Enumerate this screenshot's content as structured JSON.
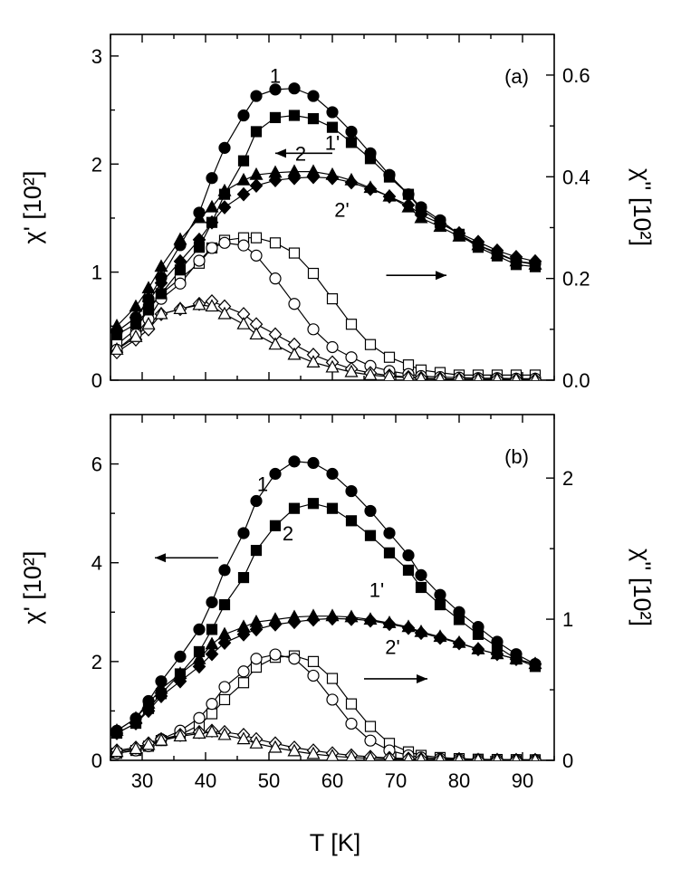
{
  "chart_data": [
    {
      "type": "scatter",
      "panel_label": "(a)",
      "x": [
        26,
        29,
        31,
        33,
        36,
        39,
        41,
        43,
        46,
        48,
        51,
        54,
        57,
        60,
        63,
        66,
        69,
        72,
        74,
        77,
        80,
        83,
        86,
        89,
        92
      ],
      "xlabel": "T [K]",
      "xlim": [
        25,
        95
      ],
      "xticks": [
        "30",
        "40",
        "50",
        "60",
        "70",
        "80",
        "90"
      ],
      "ylabel_left": "χ' [10²]",
      "ylim_left": [
        0,
        3.2
      ],
      "yticks_left": [
        "0",
        "1",
        "2",
        "3"
      ],
      "ylabel_right": "χ'' [10²]",
      "ylim_right": [
        0,
        0.68
      ],
      "yticks_right": [
        "0.0",
        "0.2",
        "0.4",
        "0.6"
      ],
      "series": [
        {
          "name": "1",
          "axis": "left",
          "marker": "circle",
          "filled": true,
          "values": [
            0.45,
            0.58,
            0.75,
            0.95,
            1.25,
            1.55,
            1.87,
            2.15,
            2.45,
            2.63,
            2.69,
            2.7,
            2.63,
            2.48,
            2.3,
            2.1,
            1.9,
            1.72,
            1.6,
            1.48,
            1.35,
            1.25,
            1.18,
            1.1,
            1.08
          ]
        },
        {
          "name": "2",
          "axis": "left",
          "marker": "square",
          "filled": true,
          "values": [
            0.42,
            0.52,
            0.65,
            0.8,
            1.02,
            1.23,
            1.46,
            1.72,
            2.03,
            2.3,
            2.43,
            2.45,
            2.42,
            2.34,
            2.2,
            2.05,
            1.88,
            1.72,
            1.58,
            1.46,
            1.35,
            1.23,
            1.15,
            1.07,
            1.05
          ]
        },
        {
          "name": "1'",
          "axis": "left",
          "marker": "triangle",
          "filled": true,
          "values": [
            0.5,
            0.68,
            0.85,
            1.05,
            1.3,
            1.5,
            1.6,
            1.75,
            1.85,
            1.9,
            1.92,
            1.93,
            1.93,
            1.9,
            1.85,
            1.78,
            1.7,
            1.6,
            1.5,
            1.42,
            1.33,
            1.25,
            1.17,
            1.1,
            1.07
          ]
        },
        {
          "name": "2'",
          "axis": "left",
          "marker": "diamond",
          "filled": true,
          "values": [
            0.45,
            0.58,
            0.73,
            0.9,
            1.1,
            1.3,
            1.46,
            1.6,
            1.72,
            1.8,
            1.85,
            1.87,
            1.88,
            1.87,
            1.83,
            1.77,
            1.7,
            1.62,
            1.53,
            1.45,
            1.36,
            1.28,
            1.2,
            1.14,
            1.1
          ]
        },
        {
          "name": "2 (χ'')",
          "axis": "right",
          "marker": "square",
          "filled": false,
          "values": [
            0.07,
            0.1,
            0.14,
            0.17,
            0.2,
            0.23,
            0.26,
            0.275,
            0.28,
            0.28,
            0.27,
            0.25,
            0.21,
            0.16,
            0.11,
            0.07,
            0.045,
            0.03,
            0.02,
            0.015,
            0.01,
            0.01,
            0.01,
            0.01,
            0.01
          ]
        },
        {
          "name": "1 (χ'')",
          "axis": "right",
          "marker": "circle",
          "filled": false,
          "values": [
            0.06,
            0.09,
            0.12,
            0.16,
            0.19,
            0.235,
            0.26,
            0.27,
            0.265,
            0.245,
            0.2,
            0.15,
            0.1,
            0.065,
            0.045,
            0.028,
            0.018,
            0.012,
            0.008,
            0.006,
            0.005,
            0.004,
            0.004,
            0.003,
            0.003
          ]
        },
        {
          "name": "2' (χ'')",
          "axis": "right",
          "marker": "diamond",
          "filled": false,
          "values": [
            0.055,
            0.08,
            0.1,
            0.13,
            0.14,
            0.15,
            0.155,
            0.145,
            0.13,
            0.11,
            0.09,
            0.07,
            0.05,
            0.035,
            0.022,
            0.014,
            0.009,
            0.006,
            0.004,
            0.003,
            0.002,
            0.002,
            0.002,
            0.001,
            0.001
          ]
        },
        {
          "name": "1' (χ'')",
          "axis": "right",
          "marker": "triangle",
          "filled": false,
          "values": [
            0.06,
            0.085,
            0.11,
            0.13,
            0.14,
            0.148,
            0.145,
            0.13,
            0.11,
            0.09,
            0.07,
            0.05,
            0.035,
            0.025,
            0.016,
            0.01,
            0.007,
            0.005,
            0.003,
            0.002,
            0.002,
            0.001,
            0.001,
            0.001,
            0.001
          ]
        }
      ],
      "curve_labels": [
        {
          "text": "1",
          "x": 51,
          "y": 2.82
        },
        {
          "text": "2",
          "x": 55,
          "y": 2.1
        },
        {
          "text": "1'",
          "x": 60,
          "y": 2.2
        },
        {
          "text": "2'",
          "x": 61.5,
          "y": 1.58
        }
      ],
      "arrows": [
        {
          "direction": "left",
          "x_from": 60,
          "x_to": 51,
          "y": 2.1
        },
        {
          "direction": "right",
          "x_from": 68.5,
          "x_to": 78,
          "y": 0.97
        }
      ]
    },
    {
      "type": "scatter",
      "panel_label": "(b)",
      "x": [
        26,
        29,
        31,
        33,
        36,
        39,
        41,
        43,
        46,
        48,
        51,
        54,
        57,
        60,
        63,
        66,
        69,
        72,
        74,
        77,
        80,
        83,
        86,
        89,
        92
      ],
      "xlabel": "T [K]",
      "xlim": [
        25,
        95
      ],
      "xticks": [
        "30",
        "40",
        "50",
        "60",
        "70",
        "80",
        "90"
      ],
      "ylabel_left": "χ' [10²]",
      "ylim_left": [
        0,
        7
      ],
      "yticks_left": [
        "0",
        "2",
        "4",
        "6"
      ],
      "ylabel_right": "χ'' [10²]",
      "ylim_right": [
        0,
        2.45
      ],
      "yticks_right": [
        "0",
        "1",
        "2"
      ],
      "series": [
        {
          "name": "1",
          "axis": "left",
          "marker": "circle",
          "filled": true,
          "values": [
            0.6,
            0.85,
            1.2,
            1.6,
            2.1,
            2.65,
            3.2,
            3.85,
            4.6,
            5.25,
            5.8,
            6.05,
            6.02,
            5.8,
            5.45,
            5.05,
            4.6,
            4.15,
            3.75,
            3.35,
            3.0,
            2.7,
            2.4,
            2.15,
            1.95
          ]
        },
        {
          "name": "2",
          "axis": "left",
          "marker": "square",
          "filled": true,
          "values": [
            0.55,
            0.75,
            1.05,
            1.35,
            1.75,
            2.2,
            2.65,
            3.15,
            3.7,
            4.25,
            4.75,
            5.1,
            5.2,
            5.1,
            4.85,
            4.55,
            4.2,
            3.85,
            3.5,
            3.15,
            2.85,
            2.55,
            2.3,
            2.05,
            1.9
          ]
        },
        {
          "name": "1'",
          "axis": "left",
          "marker": "triangle",
          "filled": true,
          "values": [
            0.6,
            0.85,
            1.15,
            1.45,
            1.75,
            2.05,
            2.35,
            2.55,
            2.7,
            2.8,
            2.85,
            2.9,
            2.92,
            2.92,
            2.9,
            2.85,
            2.78,
            2.7,
            2.6,
            2.5,
            2.38,
            2.25,
            2.15,
            2.05,
            1.95
          ]
        },
        {
          "name": "2'",
          "axis": "left",
          "marker": "diamond",
          "filled": true,
          "values": [
            0.55,
            0.75,
            1.0,
            1.3,
            1.6,
            1.9,
            2.15,
            2.38,
            2.55,
            2.65,
            2.75,
            2.8,
            2.85,
            2.87,
            2.86,
            2.83,
            2.76,
            2.68,
            2.58,
            2.48,
            2.37,
            2.25,
            2.15,
            2.05,
            1.95
          ]
        },
        {
          "name": "2 (χ'')",
          "axis": "right",
          "marker": "square",
          "filled": false,
          "values": [
            0.05,
            0.07,
            0.1,
            0.14,
            0.18,
            0.25,
            0.33,
            0.43,
            0.55,
            0.66,
            0.73,
            0.74,
            0.7,
            0.58,
            0.4,
            0.24,
            0.12,
            0.06,
            0.035,
            0.02,
            0.012,
            0.008,
            0.006,
            0.005,
            0.004
          ]
        },
        {
          "name": "1 (χ'')",
          "axis": "right",
          "marker": "circle",
          "filled": false,
          "values": [
            0.05,
            0.07,
            0.1,
            0.15,
            0.21,
            0.3,
            0.4,
            0.52,
            0.63,
            0.72,
            0.75,
            0.72,
            0.6,
            0.43,
            0.26,
            0.14,
            0.07,
            0.035,
            0.02,
            0.012,
            0.008,
            0.006,
            0.004,
            0.003,
            0.003
          ]
        },
        {
          "name": "2' (χ'')",
          "axis": "right",
          "marker": "diamond",
          "filled": false,
          "values": [
            0.07,
            0.09,
            0.12,
            0.15,
            0.18,
            0.2,
            0.21,
            0.2,
            0.18,
            0.15,
            0.12,
            0.09,
            0.07,
            0.05,
            0.035,
            0.025,
            0.017,
            0.012,
            0.008,
            0.006,
            0.004,
            0.003,
            0.002,
            0.002,
            0.002
          ]
        },
        {
          "name": "1' (χ'')",
          "axis": "right",
          "marker": "triangle",
          "filled": false,
          "values": [
            0.06,
            0.08,
            0.11,
            0.14,
            0.17,
            0.19,
            0.2,
            0.18,
            0.15,
            0.12,
            0.09,
            0.065,
            0.045,
            0.03,
            0.02,
            0.014,
            0.01,
            0.007,
            0.005,
            0.004,
            0.003,
            0.002,
            0.002,
            0.001,
            0.001
          ]
        }
      ],
      "curve_labels": [
        {
          "text": "1",
          "x": 49,
          "y": 5.6
        },
        {
          "text": "2",
          "x": 53,
          "y": 4.6
        },
        {
          "text": "1'",
          "x": 67,
          "y": 3.45
        },
        {
          "text": "2'",
          "x": 69.5,
          "y": 2.3
        }
      ],
      "arrows": [
        {
          "direction": "left",
          "x_from": 42,
          "x_to": 32,
          "y": 4.1
        },
        {
          "direction": "right",
          "x_from": 65,
          "x_to": 75,
          "y": 1.65
        }
      ]
    }
  ]
}
